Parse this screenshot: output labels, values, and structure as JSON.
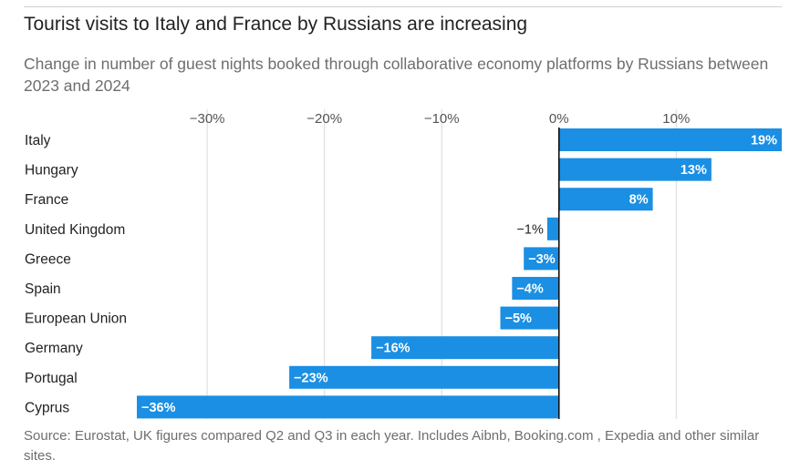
{
  "title": "Tourist visits to Italy and France by Russians are increasing",
  "subtitle": "Change in number of guest nights booked through collaborative economy platforms by Russians between 2023 and 2024",
  "source": "Source: Eurostat, UK figures compared Q2 and Q3 in each year. Includes Aibnb, Booking.com , Expedia and other similar sites.",
  "colors": {
    "bar": "#1a8fe3",
    "grid": "#d9d9d9",
    "zero_line": "#111111",
    "label_inside": "#ffffff",
    "label_outside": "#222222"
  },
  "chart_data": {
    "type": "bar",
    "orientation": "horizontal",
    "categories": [
      "Italy",
      "Hungary",
      "France",
      "United Kingdom",
      "Greece",
      "Spain",
      "European Union",
      "Germany",
      "Portugal",
      "Cyprus"
    ],
    "values": [
      19,
      13,
      8,
      -1,
      -3,
      -4,
      -5,
      -16,
      -23,
      -36
    ],
    "value_labels": [
      "19%",
      "13%",
      "8%",
      "−1%",
      "−3%",
      "−4%",
      "−5%",
      "−16%",
      "−23%",
      "−36%"
    ],
    "x_ticks": [
      -30,
      -20,
      -10,
      0,
      10
    ],
    "x_tick_labels": [
      "−30%",
      "−20%",
      "−10%",
      "0%",
      "10%"
    ],
    "xlim": [
      -36,
      19
    ],
    "grid": true,
    "legend": false,
    "title": "Tourist visits to Italy and France by Russians are increasing",
    "xlabel": "",
    "ylabel": ""
  }
}
